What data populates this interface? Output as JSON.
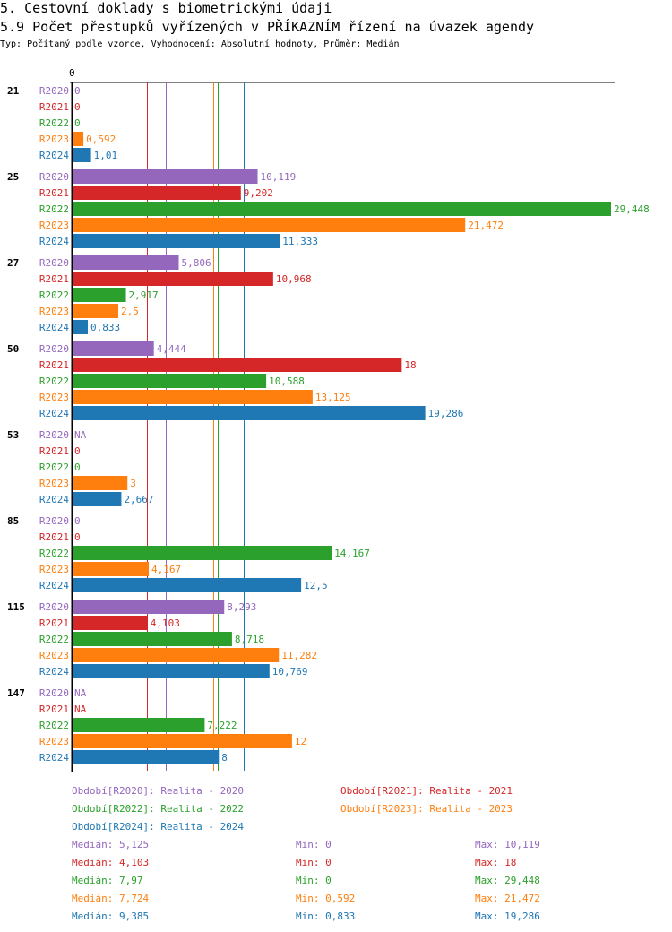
{
  "header": {
    "title": "5. Cestovní doklady s biometrickými údaji",
    "subtitle": "5.9 Počet přestupků vyřízených v PŘÍKAZNÍM řízení na úvazek agendy",
    "info": "Typ: Počítaný podle vzorce, Vyhodnocení: Absolutní hodnoty, Průměr: Medián"
  },
  "chart_data": {
    "type": "bar",
    "orientation": "horizontal",
    "xlim": [
      0,
      29.448
    ],
    "x_tick_labels": [
      "0"
    ],
    "categories": [
      "21",
      "25",
      "27",
      "50",
      "53",
      "85",
      "115",
      "147"
    ],
    "series": [
      {
        "name": "R2020",
        "color": "#9467bd",
        "values": [
          0,
          10.119,
          5.806,
          4.444,
          null,
          0,
          8.293,
          null
        ],
        "labels": [
          "0",
          "10,119",
          "5,806",
          "4,444",
          "NA",
          "0",
          "8,293",
          "NA"
        ]
      },
      {
        "name": "R2021",
        "color": "#d62728",
        "values": [
          0,
          9.202,
          10.968,
          18,
          0,
          0,
          4.103,
          null
        ],
        "labels": [
          "0",
          "9,202",
          "10,968",
          "18",
          "0",
          "0",
          "4,103",
          "NA"
        ]
      },
      {
        "name": "R2022",
        "color": "#2ca02c",
        "values": [
          0,
          29.448,
          2.917,
          10.588,
          0,
          14.167,
          8.718,
          7.222
        ],
        "labels": [
          "0",
          "29,448",
          "2,917",
          "10,588",
          "0",
          "14,167",
          "8,718",
          "7,222"
        ]
      },
      {
        "name": "R2023",
        "color": "#ff7f0e",
        "values": [
          0.592,
          21.472,
          2.5,
          13.125,
          3,
          4.167,
          11.282,
          12
        ],
        "labels": [
          "0,592",
          "21,472",
          "2,5",
          "13,125",
          "3",
          "4,167",
          "11,282",
          "12"
        ]
      },
      {
        "name": "R2024",
        "color": "#1f77b4",
        "values": [
          1.01,
          11.333,
          0.833,
          19.286,
          2.667,
          12.5,
          10.769,
          8
        ],
        "labels": [
          "1,01",
          "11,333",
          "0,833",
          "19,286",
          "2,667",
          "12,5",
          "10,769",
          "8"
        ]
      }
    ],
    "median_lines": [
      {
        "series": "R2020",
        "value": 5.125
      },
      {
        "series": "R2021",
        "value": 4.103
      },
      {
        "series": "R2022",
        "value": 7.97
      },
      {
        "series": "R2023",
        "value": 7.724
      },
      {
        "series": "R2024",
        "value": 9.385
      }
    ],
    "legend": [
      "Období[R2020]: Realita - 2020",
      "Období[R2021]: Realita - 2021",
      "Období[R2022]: Realita - 2022",
      "Období[R2023]: Realita - 2023",
      "Období[R2024]: Realita - 2024"
    ],
    "stats": [
      {
        "median": "Medián: 5,125",
        "min": "Min: 0",
        "max": "Max: 10,119"
      },
      {
        "median": "Medián: 4,103",
        "min": "Min: 0",
        "max": "Max: 18"
      },
      {
        "median": "Medián: 7,97",
        "min": "Min: 0",
        "max": "Max: 29,448"
      },
      {
        "median": "Medián: 7,724",
        "min": "Min: 0,592",
        "max": "Max: 21,472"
      },
      {
        "median": "Medián: 9,385",
        "min": "Min: 0,833",
        "max": "Max: 19,286"
      }
    ]
  }
}
